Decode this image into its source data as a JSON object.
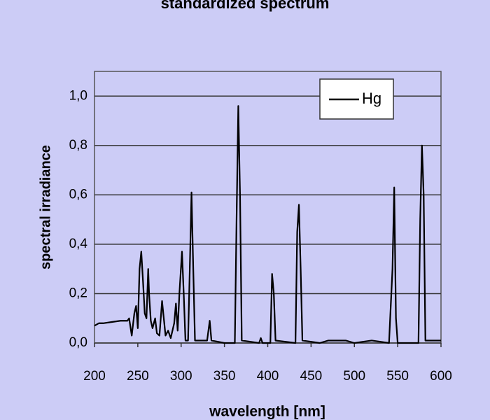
{
  "chart_data": {
    "type": "line",
    "title": "standardized spectrum",
    "x_label": "wavelength [nm]",
    "y_label": "spectral irradiance",
    "legend": "top-right",
    "grid": true,
    "xlim": [
      200,
      600
    ],
    "ylim": [
      0,
      1.1
    ],
    "xticks": [
      200,
      250,
      300,
      350,
      400,
      450,
      500,
      550,
      600
    ],
    "yticks": [
      {
        "value": 0,
        "label": "0,0"
      },
      {
        "value": 0.2,
        "label": "0,2"
      },
      {
        "value": 0.4,
        "label": "0,4"
      },
      {
        "value": 0.6,
        "label": "0,6"
      },
      {
        "value": 0.8,
        "label": "0,8"
      },
      {
        "value": 1,
        "label": "1,0"
      }
    ],
    "x": [
      200,
      205,
      210,
      220,
      230,
      238,
      240,
      243,
      246,
      248,
      250,
      252,
      254,
      256,
      258,
      260,
      262,
      263,
      265,
      267,
      270,
      272,
      275,
      278,
      280,
      282,
      285,
      288,
      292,
      294,
      296,
      298,
      301,
      303,
      305,
      308,
      310,
      312,
      314,
      316,
      325,
      330,
      333,
      335,
      350,
      362,
      364,
      366,
      368,
      370,
      390,
      392,
      394,
      403,
      405,
      407,
      409,
      432,
      434,
      436,
      438,
      440,
      460,
      470,
      490,
      500,
      520,
      540,
      544,
      546,
      548,
      550,
      574,
      576,
      578,
      580,
      582,
      600
    ],
    "series": [
      {
        "name": "Hg",
        "color": "#000000",
        "values": [
          0.07,
          0.08,
          0.08,
          0.085,
          0.09,
          0.09,
          0.1,
          0.03,
          0.12,
          0.15,
          0.06,
          0.3,
          0.37,
          0.25,
          0.12,
          0.1,
          0.3,
          0.2,
          0.09,
          0.06,
          0.1,
          0.04,
          0.03,
          0.17,
          0.1,
          0.03,
          0.05,
          0.02,
          0.08,
          0.16,
          0.05,
          0.2,
          0.37,
          0.2,
          0.01,
          0.01,
          0.3,
          0.61,
          0.3,
          0.01,
          0.01,
          0.01,
          0.09,
          0.01,
          0.0,
          0.0,
          0.5,
          0.96,
          0.6,
          0.01,
          0.0,
          0.02,
          0.0,
          0.0,
          0.28,
          0.2,
          0.01,
          0.0,
          0.45,
          0.56,
          0.3,
          0.01,
          0.0,
          0.01,
          0.01,
          0.0,
          0.01,
          0.0,
          0.3,
          0.63,
          0.1,
          0.0,
          0.0,
          0.5,
          0.8,
          0.6,
          0.01,
          0.01
        ]
      }
    ]
  }
}
